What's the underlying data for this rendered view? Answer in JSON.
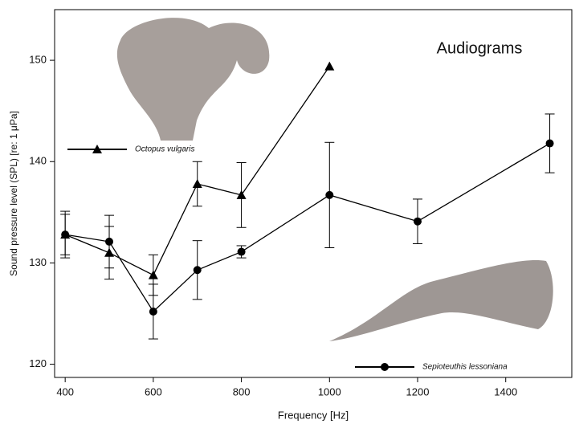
{
  "chart_data": {
    "type": "line",
    "title": "Audiograms",
    "x_label": "Frequency [Hz]",
    "y_label": "Sound pressure level (SPL) [re: 1 μPa]",
    "xlim": [
      376,
      1550
    ],
    "ylim": [
      118.7,
      155
    ],
    "xticks": [
      400,
      600,
      800,
      1000,
      1200,
      1400
    ],
    "yticks": [
      120,
      130,
      140,
      150
    ],
    "series": [
      {
        "name": "Octopus vulgaris",
        "color": "#000000",
        "marker": "triangle",
        "x": [
          400,
          500,
          600,
          700,
          800,
          1000
        ],
        "values": [
          132.8,
          131.0,
          128.8,
          137.8,
          136.7,
          149.4
        ],
        "errors": [
          2.0,
          2.6,
          2.0,
          2.2,
          3.2,
          null
        ]
      },
      {
        "name": "Sepioteuthis lessoniana",
        "color": "#000000",
        "marker": "circle",
        "x": [
          400,
          500,
          600,
          700,
          800,
          1000,
          1200,
          1500
        ],
        "values": [
          132.8,
          132.1,
          125.2,
          129.3,
          131.1,
          136.7,
          134.1,
          141.8
        ],
        "errors": [
          2.3,
          2.6,
          2.7,
          2.9,
          0.6,
          5.2,
          2.2,
          2.9
        ]
      }
    ]
  }
}
